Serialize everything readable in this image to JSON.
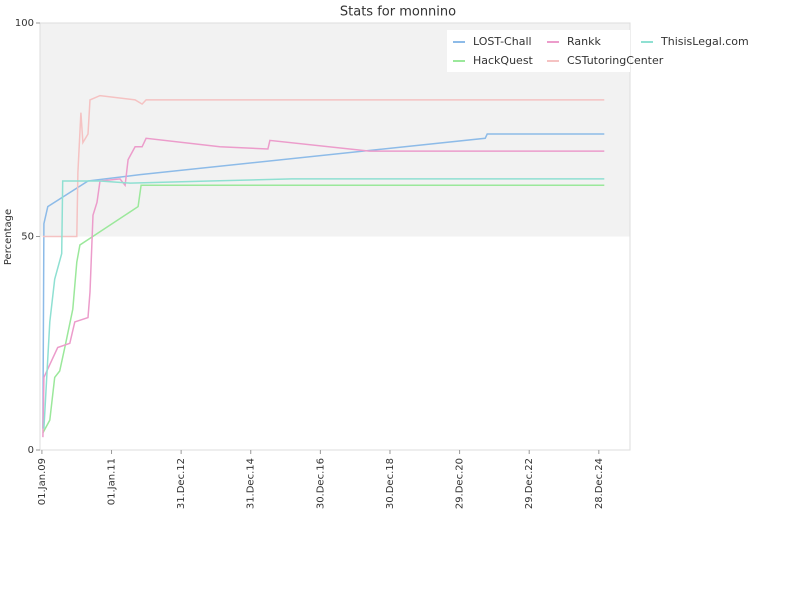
{
  "chart_data": {
    "type": "line",
    "title": "Stats for monnino",
    "ylabel": "Percentage",
    "ylim": [
      0,
      100
    ],
    "yticks": [
      0,
      50,
      100
    ],
    "xlim": [
      "2008-12-12",
      "2025-11-20"
    ],
    "xticks": [
      {
        "value": "2009-01-01",
        "label": "01.Jan.09"
      },
      {
        "value": "2011-01-01",
        "label": "01.Jan.11"
      },
      {
        "value": "2012-12-31",
        "label": "31.Dec.12"
      },
      {
        "value": "2014-12-31",
        "label": "31.Dec.14"
      },
      {
        "value": "2016-12-30",
        "label": "30.Dec.16"
      },
      {
        "value": "2018-12-30",
        "label": "30.Dec.18"
      },
      {
        "value": "2020-12-29",
        "label": "29.Dec.20"
      },
      {
        "value": "2022-12-29",
        "label": "29.Dec.22"
      },
      {
        "value": "2024-12-28",
        "label": "28.Dec.24"
      }
    ],
    "legend": "upper right",
    "series": [
      {
        "name": "LOST-Chall",
        "color": "#8dbbe8",
        "x": [
          "2009-01-11",
          "2009-01-22",
          "2009-03-04",
          "2010-04-29",
          "2011-10-28",
          "2021-09-24",
          "2021-10-15",
          "2025-02-23"
        ],
        "values": [
          5,
          53,
          57,
          63,
          64.5,
          73,
          74,
          74
        ]
      },
      {
        "name": "HackQuest",
        "color": "#9be89b",
        "x": [
          "2009-01-11",
          "2009-03-25",
          "2009-05-15",
          "2009-07-07",
          "2009-09-08",
          "2009-11-21",
          "2010-01-02",
          "2010-02-03",
          "2011-10-07",
          "2011-11-07",
          "2025-02-23"
        ],
        "values": [
          4,
          7,
          17,
          18.5,
          25,
          33,
          44,
          48,
          57,
          62,
          62
        ]
      },
      {
        "name": "Rankk",
        "color": "#ec9ccb",
        "x": [
          "2009-01-11",
          "2009-01-22",
          "2009-03-25",
          "2009-06-16",
          "2009-10-20",
          "2009-12-12",
          "2010-04-29",
          "2010-05-20",
          "2010-06-21",
          "2010-08-02",
          "2010-09-02",
          "2011-03-31",
          "2011-05-23",
          "2011-06-24",
          "2011-09-05",
          "2011-11-18",
          "2011-12-30",
          "2014-02-10",
          "2015-06-29",
          "2015-07-20",
          "2018-05-28",
          "2025-02-23"
        ],
        "values": [
          3,
          17,
          20,
          24,
          25,
          30,
          31,
          37,
          55,
          58,
          63,
          63.5,
          62,
          68,
          71,
          71,
          73,
          71,
          70.5,
          72.5,
          70,
          70
        ]
      },
      {
        "name": "CSTutoringCenter",
        "color": "#f5c2c2",
        "x": [
          "2009-01-11",
          "2010-01-02",
          "2010-01-13",
          "2010-02-14",
          "2010-03-07",
          "2010-04-29",
          "2010-05-20",
          "2010-09-02",
          "2011-09-05",
          "2011-11-18",
          "2011-12-30",
          "2025-02-23"
        ],
        "values": [
          50,
          50,
          65,
          79,
          72,
          74,
          82,
          83,
          82,
          81,
          82,
          82
        ]
      },
      {
        "name": "ThisisLegal.com",
        "color": "#8fe0d2",
        "x": [
          "2009-01-22",
          "2009-03-25",
          "2009-05-15",
          "2009-07-28",
          "2009-08-07",
          "2010-09-02",
          "2011-07-15",
          "2013-10-30",
          "2016-03-07",
          "2025-02-23"
        ],
        "values": [
          5,
          30,
          40,
          46,
          63,
          63,
          62.5,
          63,
          63.5,
          63.5
        ]
      }
    ]
  }
}
